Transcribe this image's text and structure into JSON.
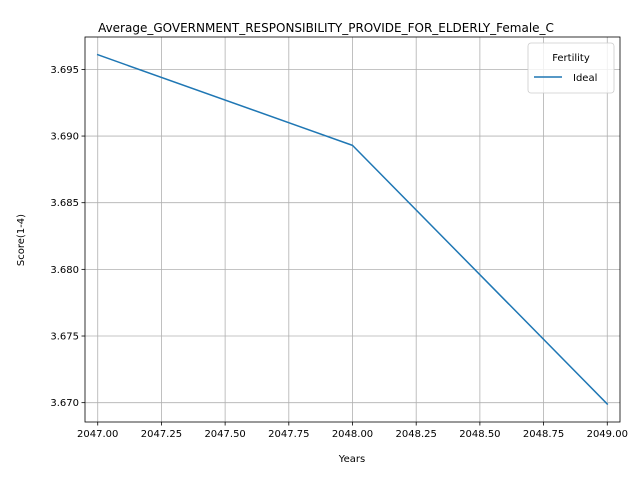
{
  "chart_data": {
    "type": "line",
    "title": "Average_GOVERNMENT_RESPONSIBILITY_PROVIDE_FOR_ELDERLY_Female_C",
    "xlabel": "Years",
    "ylabel": "Score(1-4)",
    "xlim": [
      2046.95,
      2049.05
    ],
    "ylim": [
      3.66855,
      3.69743
    ],
    "xticks": [
      2047.0,
      2047.25,
      2047.5,
      2047.75,
      2048.0,
      2048.25,
      2048.5,
      2048.75,
      2049.0
    ],
    "xtick_labels": [
      "2047.00",
      "2047.25",
      "2047.50",
      "2047.75",
      "2048.00",
      "2048.25",
      "2048.50",
      "2048.75",
      "2049.00"
    ],
    "yticks": [
      3.67,
      3.675,
      3.68,
      3.685,
      3.69,
      3.695
    ],
    "ytick_labels": [
      "3.670",
      "3.675",
      "3.680",
      "3.685",
      "3.690",
      "3.695"
    ],
    "grid": true,
    "legend": {
      "title": "Fertility",
      "placement": "top-right"
    },
    "series": [
      {
        "name": "Ideal",
        "color": "#1f77b4",
        "x": [
          2047,
          2048,
          2049
        ],
        "values": [
          3.6961,
          3.6893,
          3.6699
        ]
      }
    ]
  }
}
